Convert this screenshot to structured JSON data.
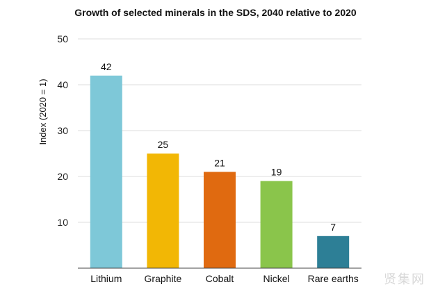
{
  "chart_data": {
    "type": "bar",
    "title": "Growth of selected minerals in the SDS, 2040 relative to 2020",
    "ylabel": "Index (2020 = 1)",
    "xlabel": "",
    "categories": [
      "Lithium",
      "Graphite",
      "Cobalt",
      "Nickel",
      "Rare earths"
    ],
    "values": [
      42,
      25,
      21,
      19,
      7
    ],
    "data_labels": [
      "42",
      "25",
      "21",
      "19",
      "7"
    ],
    "colors": [
      "#7ec8d8",
      "#f2b705",
      "#e06a10",
      "#8ac54b",
      "#2d7f96"
    ],
    "ylim": [
      0,
      50
    ],
    "yticks": [
      10,
      20,
      30,
      40,
      50
    ],
    "grid": true,
    "legend": "none"
  },
  "watermark": "贤集网"
}
